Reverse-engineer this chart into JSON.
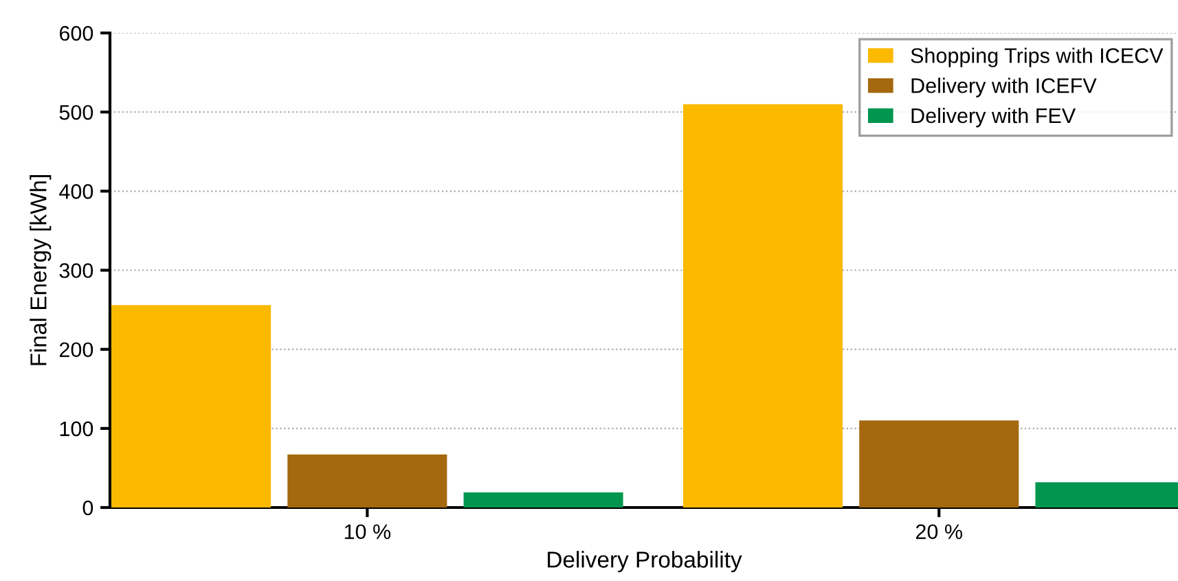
{
  "chart_data": {
    "type": "bar",
    "xlabel": "Delivery Probability",
    "ylabel": "Final Energy [kWh]",
    "categories": [
      "10 %",
      "20 %"
    ],
    "series": [
      {
        "name": "Shopping Trips with ICECV",
        "color": "#fbb900",
        "values": [
          256,
          510
        ]
      },
      {
        "name": "Delivery with ICEFV",
        "color": "#a5680f",
        "values": [
          67,
          110
        ]
      },
      {
        "name": "Delivery with FEV",
        "color": "#009650",
        "values": [
          19,
          32
        ]
      }
    ],
    "ylim": [
      0,
      600
    ],
    "yticks": [
      0,
      100,
      200,
      300,
      400,
      500,
      600
    ],
    "grid": "y",
    "legend": "top right"
  }
}
